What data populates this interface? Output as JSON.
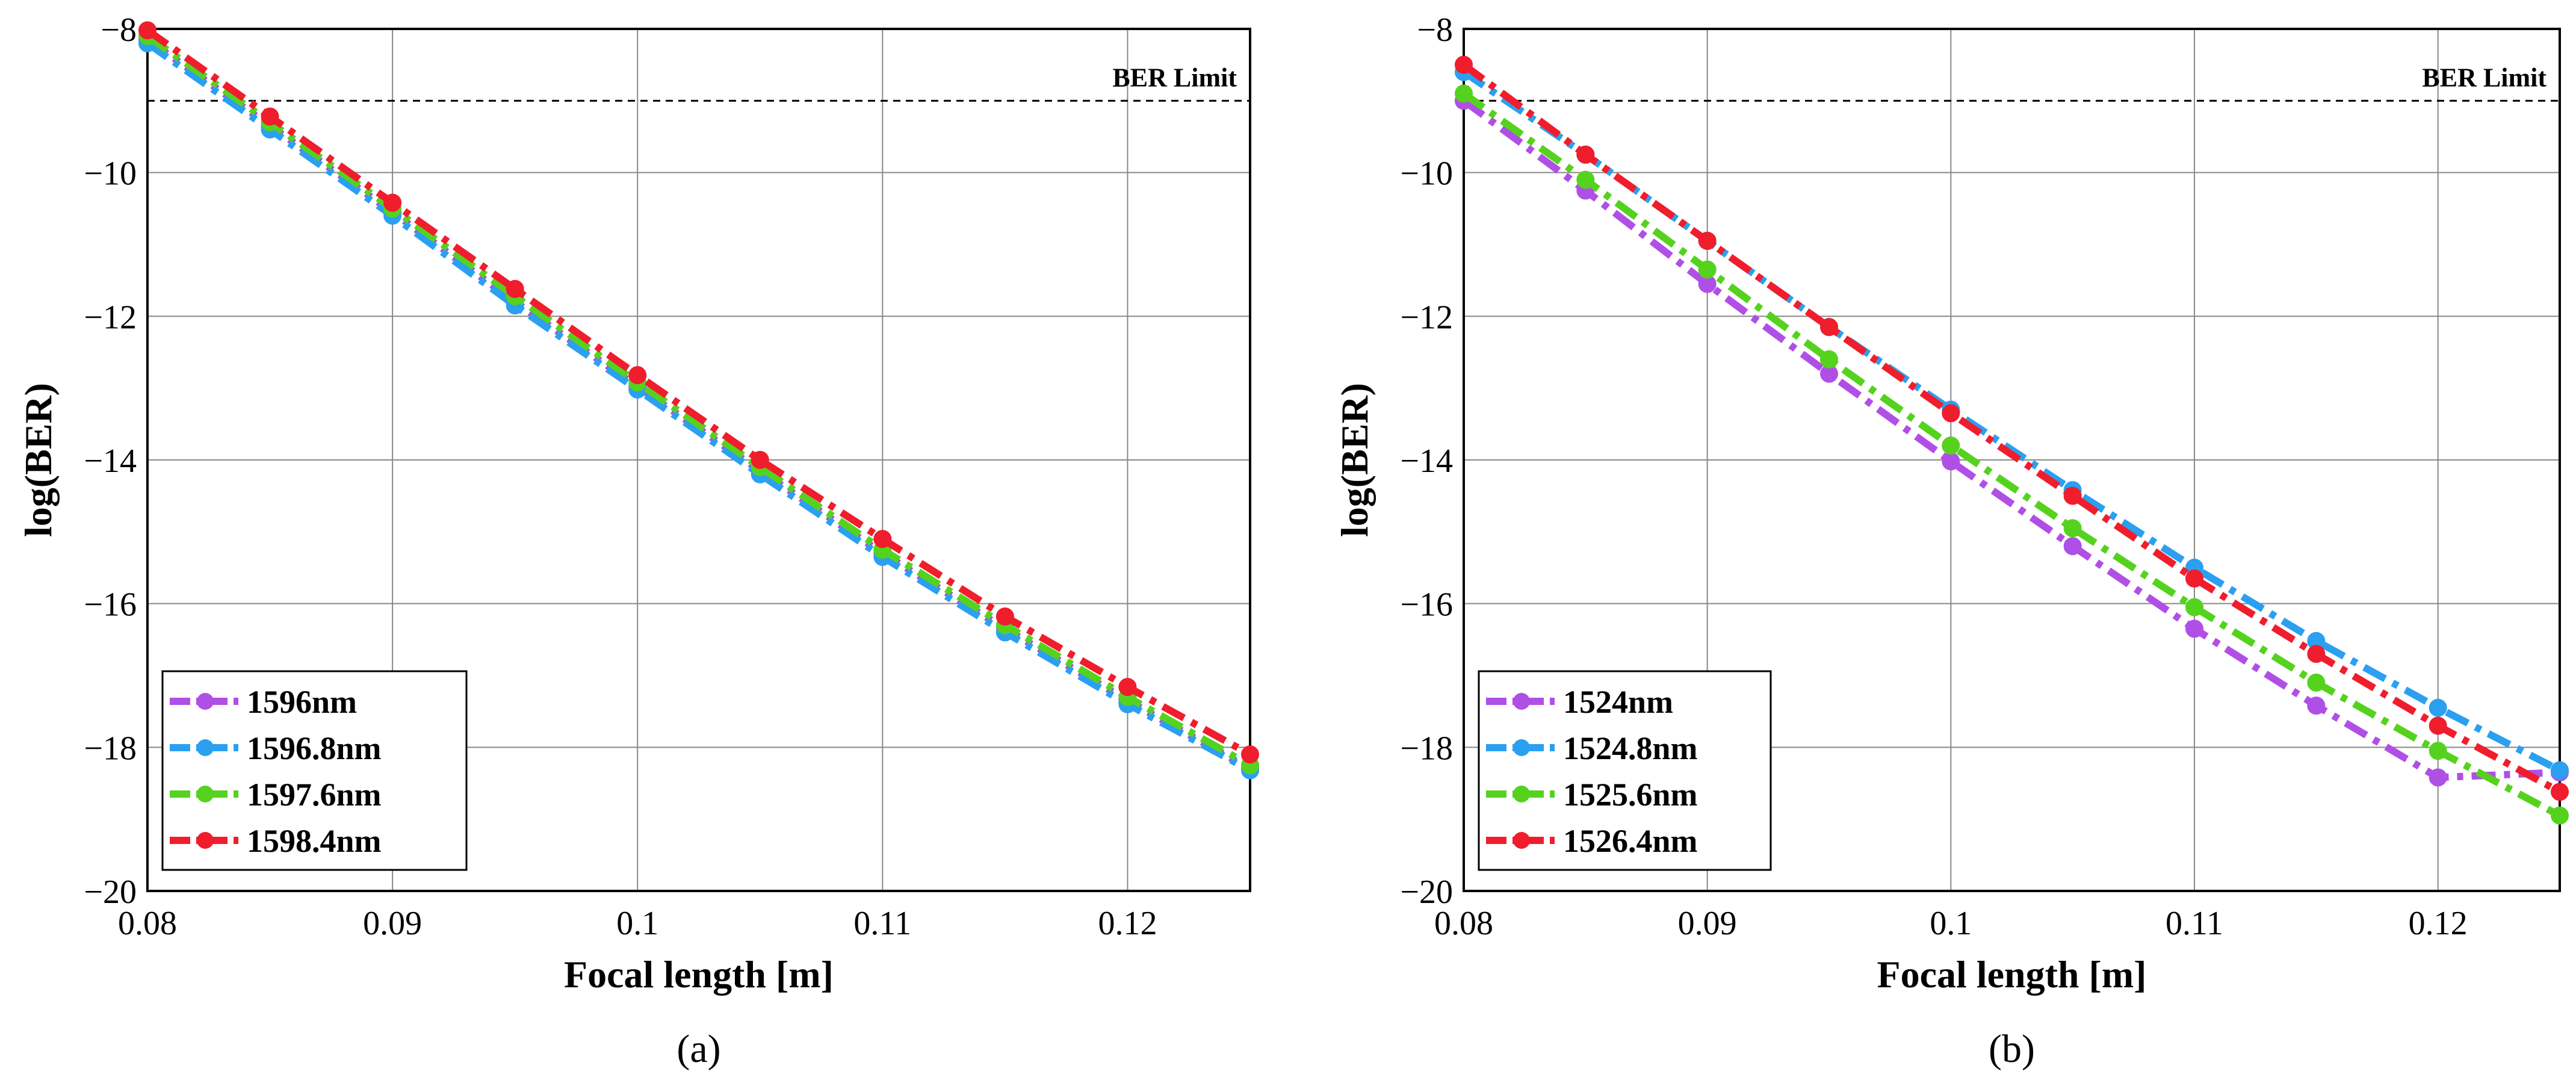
{
  "chart_data": [
    {
      "type": "line",
      "panel_label": "(a)",
      "xlabel": "Focal length [m]",
      "ylabel": "log(BER)",
      "xlim": [
        0.08,
        0.125
      ],
      "ylim": [
        -20,
        -8
      ],
      "xticks": [
        0.08,
        0.09,
        0.1,
        0.11,
        0.12
      ],
      "xtick_labels": [
        "0.08",
        "0.09",
        "0.1",
        "0.11",
        "0.12"
      ],
      "yticks": [
        -8,
        -10,
        -12,
        -14,
        -16,
        -18,
        -20
      ],
      "ytick_labels": [
        "−8",
        "−10",
        "−12",
        "−14",
        "−16",
        "−18",
        "−20"
      ],
      "grid": true,
      "legend_position": "bottom-left",
      "reference_line": {
        "label": "BER Limit",
        "y": -9
      },
      "x": [
        0.08,
        0.085,
        0.09,
        0.095,
        0.1,
        0.105,
        0.11,
        0.115,
        0.12,
        0.125
      ],
      "series": [
        {
          "name": "1596nm",
          "color": "#b04fe6",
          "values": [
            -8.15,
            -9.35,
            -10.55,
            -11.8,
            -12.98,
            -14.15,
            -15.3,
            -16.35,
            -17.35,
            -18.3
          ]
        },
        {
          "name": "1596.8nm",
          "color": "#2ba0f0",
          "values": [
            -8.2,
            -9.4,
            -10.6,
            -11.85,
            -13.02,
            -14.2,
            -15.35,
            -16.4,
            -17.4,
            -18.32
          ]
        },
        {
          "name": "1597.6nm",
          "color": "#55d21e",
          "values": [
            -8.1,
            -9.3,
            -10.5,
            -11.72,
            -12.92,
            -14.1,
            -15.25,
            -16.3,
            -17.3,
            -18.25
          ]
        },
        {
          "name": "1598.4nm",
          "color": "#f01d2c",
          "values": [
            -8.02,
            -9.22,
            -10.42,
            -11.62,
            -12.82,
            -14.0,
            -15.1,
            -16.18,
            -17.16,
            -18.1
          ]
        }
      ]
    },
    {
      "type": "line",
      "panel_label": "(b)",
      "xlabel": "Focal length [m]",
      "ylabel": "log(BER)",
      "xlim": [
        0.08,
        0.125
      ],
      "ylim": [
        -20,
        -8
      ],
      "xticks": [
        0.08,
        0.09,
        0.1,
        0.11,
        0.12
      ],
      "xtick_labels": [
        "0.08",
        "0.09",
        "0.1",
        "0.11",
        "0.12"
      ],
      "yticks": [
        -8,
        -10,
        -12,
        -14,
        -16,
        -18,
        -20
      ],
      "ytick_labels": [
        "−8",
        "−10",
        "−12",
        "−14",
        "−16",
        "−18",
        "−20"
      ],
      "grid": true,
      "legend_position": "bottom-left",
      "reference_line": {
        "label": "BER Limit",
        "y": -9
      },
      "x": [
        0.08,
        0.085,
        0.09,
        0.095,
        0.1,
        0.105,
        0.11,
        0.115,
        0.12,
        0.125
      ],
      "series": [
        {
          "name": "1524nm",
          "color": "#b04fe6",
          "values": [
            -9.0,
            -10.25,
            -11.55,
            -12.8,
            -14.02,
            -15.2,
            -16.35,
            -17.42,
            -18.42,
            -18.35
          ]
        },
        {
          "name": "1524.8nm",
          "color": "#2ba0f0",
          "values": [
            -8.6,
            -9.75,
            -10.95,
            -12.15,
            -13.3,
            -14.42,
            -15.5,
            -16.52,
            -17.45,
            -18.32
          ]
        },
        {
          "name": "1525.6nm",
          "color": "#55d21e",
          "values": [
            -8.9,
            -10.1,
            -11.35,
            -12.6,
            -13.8,
            -14.95,
            -16.05,
            -17.1,
            -18.05,
            -18.95
          ]
        },
        {
          "name": "1526.4nm",
          "color": "#f01d2c",
          "values": [
            -8.5,
            -9.75,
            -10.95,
            -12.15,
            -13.35,
            -14.5,
            -15.65,
            -16.7,
            -17.7,
            -18.62
          ]
        }
      ]
    }
  ]
}
